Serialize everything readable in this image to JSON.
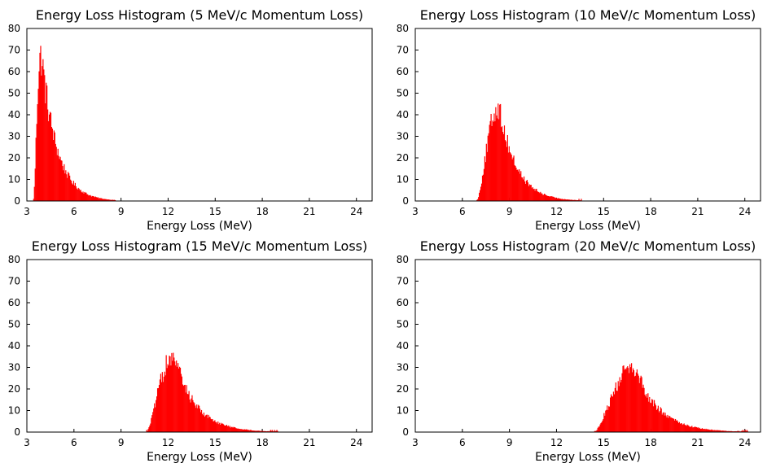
{
  "chart_data": [
    {
      "type": "bar",
      "title": "Energy Loss Histogram (5 MeV/c Momentum Loss)",
      "xlabel": "Energy Loss (MeV)",
      "ylabel": "",
      "xlim": [
        3,
        25
      ],
      "ylim": [
        0,
        80
      ],
      "xticks": [
        "3",
        "6",
        "9",
        "12",
        "15",
        "18",
        "21",
        "24"
      ],
      "yticks": [
        "0",
        "10",
        "20",
        "30",
        "40",
        "50",
        "60",
        "70",
        "80"
      ],
      "grid": false,
      "bar_color": "#ff0000",
      "distribution": {
        "start": 3.4,
        "peak": 3.85,
        "peak_count": 73,
        "end": 8.6,
        "bin_width": 0.05
      }
    },
    {
      "type": "bar",
      "title": "Energy Loss Histogram (10 MeV/c Momentum Loss)",
      "xlabel": "Energy Loss (MeV)",
      "ylabel": "",
      "xlim": [
        3,
        25
      ],
      "ylim": [
        0,
        80
      ],
      "xticks": [
        "3",
        "6",
        "9",
        "12",
        "15",
        "18",
        "21",
        "24"
      ],
      "yticks": [
        "0",
        "10",
        "20",
        "30",
        "40",
        "50",
        "60",
        "70",
        "80"
      ],
      "grid": false,
      "bar_color": "#ff0000",
      "distribution": {
        "start": 6.9,
        "peak": 8.3,
        "peak_count": 46,
        "end": 13.6,
        "bin_width": 0.05
      }
    },
    {
      "type": "bar",
      "title": "Energy Loss Histogram (15 MeV/c Momentum Loss)",
      "xlabel": "Energy Loss (MeV)",
      "ylabel": "",
      "xlim": [
        3,
        25
      ],
      "ylim": [
        0,
        80
      ],
      "xticks": [
        "3",
        "6",
        "9",
        "12",
        "15",
        "18",
        "21",
        "24"
      ],
      "yticks": [
        "0",
        "10",
        "20",
        "30",
        "40",
        "50",
        "60",
        "70",
        "80"
      ],
      "grid": false,
      "bar_color": "#ff0000",
      "distribution": {
        "start": 10.6,
        "peak": 12.3,
        "peak_count": 37,
        "end": 19.0,
        "bin_width": 0.05
      }
    },
    {
      "type": "bar",
      "title": "Energy Loss Histogram (20 MeV/c Momentum Loss)",
      "xlabel": "Energy Loss (MeV)",
      "ylabel": "",
      "xlim": [
        3,
        25
      ],
      "ylim": [
        0,
        80
      ],
      "xticks": [
        "3",
        "6",
        "9",
        "12",
        "15",
        "18",
        "21",
        "24"
      ],
      "yticks": [
        "0",
        "10",
        "20",
        "30",
        "40",
        "50",
        "60",
        "70",
        "80"
      ],
      "grid": false,
      "bar_color": "#ff0000",
      "distribution": {
        "start": 14.4,
        "peak": 16.9,
        "peak_count": 32,
        "end": 24.2,
        "bin_width": 0.05
      }
    }
  ]
}
